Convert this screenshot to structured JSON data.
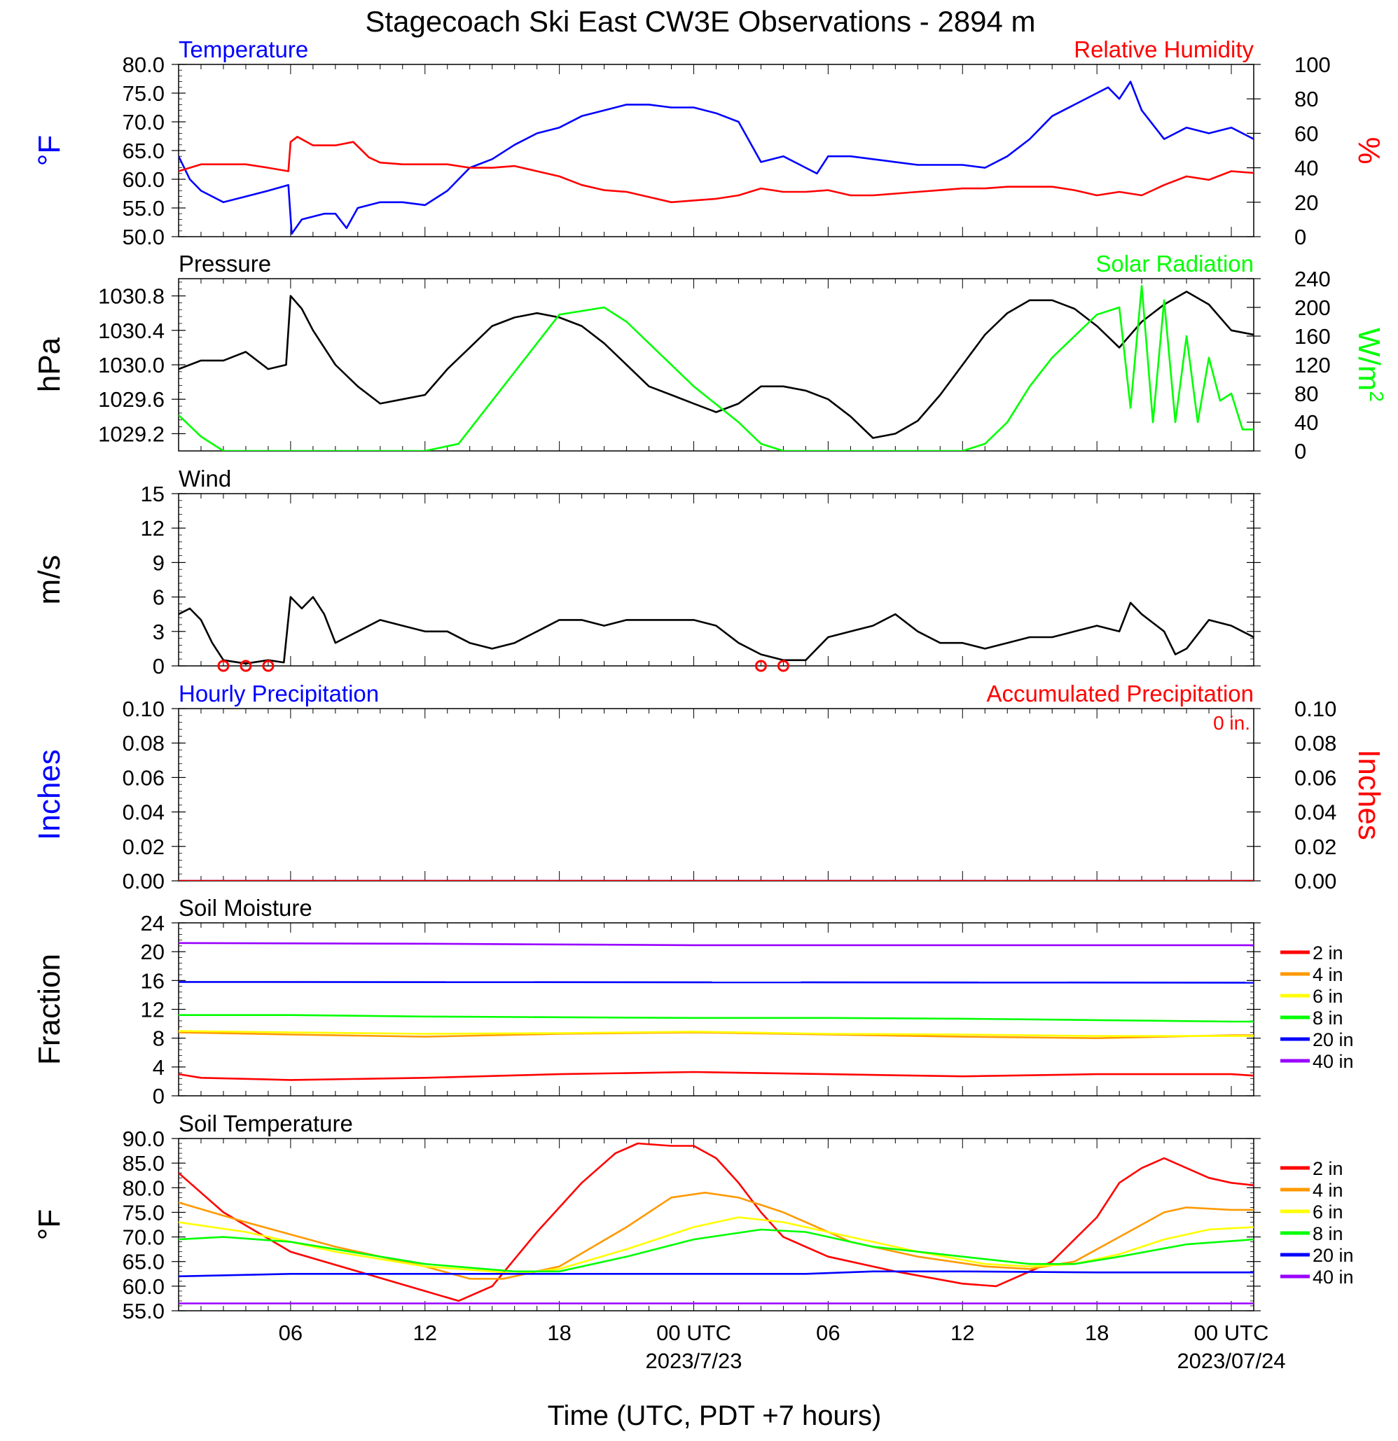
{
  "title": "Stagecoach Ski East CW3E Observations - 2894 m",
  "xlabel": "Time (UTC, PDT +7 hours)",
  "x_ticks": [
    "06",
    "12",
    "18",
    "00 UTC",
    "06",
    "12",
    "18",
    "00 UTC"
  ],
  "x_tick_hours": [
    6,
    12,
    18,
    24,
    30,
    36,
    42,
    48
  ],
  "date_labels": [
    {
      "hour": 24,
      "text": "2023/7/23"
    },
    {
      "hour": 48,
      "text": "2023/07/24"
    }
  ],
  "colors": {
    "blue": "#0000ff",
    "red": "#ff0000",
    "green": "#00ff00",
    "orange": "#ff9900",
    "yellow": "#ffff00",
    "purple": "#9900ff",
    "black": "#000000"
  },
  "chart_data": [
    {
      "type": "line",
      "left_title": "Temperature",
      "right_title": "Relative Humidity",
      "ylabel_left": "°F",
      "ylabel_right": "%",
      "ylim_left": [
        50,
        80
      ],
      "ylim_right": [
        0,
        100
      ],
      "yticks_left": [
        "50.0",
        "55.0",
        "60.0",
        "65.0",
        "70.0",
        "75.0",
        "80.0"
      ],
      "yticks_right": [
        "0",
        "20",
        "40",
        "60",
        "80",
        "100"
      ],
      "x_hours_range": [
        1,
        49
      ],
      "series": [
        {
          "axis": "left",
          "color": "#0000ff",
          "x": [
            1,
            1.5,
            2,
            3,
            4,
            5,
            5.9,
            6.05,
            6.5,
            7.5,
            8,
            8.5,
            9,
            10,
            11,
            12,
            13,
            14,
            15,
            16,
            17,
            18,
            19,
            20,
            21,
            22,
            23,
            24,
            25,
            26,
            27,
            28,
            29,
            29.5,
            30,
            31,
            32,
            33,
            34,
            35,
            36,
            37,
            38,
            39,
            40,
            41,
            42,
            42.5,
            43,
            43.5,
            44,
            45,
            46,
            47,
            48,
            49
          ],
          "y": [
            64,
            60,
            58,
            56,
            57,
            58,
            59,
            50.5,
            53,
            54,
            54,
            51.5,
            55,
            56,
            56,
            55.5,
            58,
            62,
            63.5,
            66,
            68,
            69,
            71,
            72,
            73,
            73,
            72.5,
            72.5,
            71.5,
            70,
            63,
            64,
            62,
            61,
            64,
            64,
            63.5,
            63,
            62.5,
            62.5,
            62.5,
            62,
            64,
            67,
            71,
            73,
            75,
            76,
            74,
            77,
            72,
            67,
            69,
            68,
            69,
            67
          ]
        },
        {
          "axis": "right",
          "color": "#ff0000",
          "x": [
            1,
            2,
            3,
            4,
            5,
            5.9,
            6,
            6.3,
            7,
            8,
            8.8,
            9.5,
            10,
            11,
            12,
            13,
            14,
            15,
            16,
            17,
            18,
            19,
            20,
            21,
            22,
            23,
            24,
            25,
            26,
            27,
            28,
            29,
            30,
            31,
            32,
            33,
            34,
            35,
            36,
            37,
            38,
            39,
            40,
            41,
            42,
            43,
            44,
            45,
            46,
            47,
            48,
            49
          ],
          "y": [
            38,
            42,
            42,
            42,
            40,
            38,
            55,
            58,
            53,
            53,
            55,
            46,
            43,
            42,
            42,
            42,
            40,
            40,
            41,
            38,
            35,
            30,
            27,
            26,
            23,
            20,
            21,
            22,
            24,
            28,
            26,
            26,
            27,
            24,
            24,
            25,
            26,
            27,
            28,
            28,
            29,
            29,
            29,
            27,
            24,
            26,
            24,
            30,
            35,
            33,
            38,
            37
          ]
        }
      ]
    },
    {
      "type": "line",
      "left_title": "Pressure",
      "right_title": "Solar Radiation",
      "ylabel_left": "hPa",
      "ylabel_right": "W/m",
      "ylabel_right_superscript": "2",
      "ylim_left": [
        1029.0,
        1031.0
      ],
      "ylim_right": [
        0,
        240
      ],
      "yticks_left": [
        "1029.2",
        "1029.6",
        "1030.0",
        "1030.4",
        "1030.8"
      ],
      "yticks_right": [
        "0",
        "40",
        "80",
        "120",
        "160",
        "200",
        "240"
      ],
      "series": [
        {
          "axis": "left",
          "color": "#000000",
          "x": [
            1,
            2,
            3,
            4,
            5,
            5.8,
            6,
            6.5,
            7,
            8,
            9,
            10,
            11,
            12,
            13,
            14,
            15,
            16,
            17,
            18,
            19,
            20,
            21,
            22,
            23,
            24,
            25,
            26,
            27,
            28,
            29,
            30,
            31,
            32,
            33,
            34,
            35,
            36,
            37,
            38,
            39,
            40,
            41,
            42,
            43,
            44,
            45,
            46,
            47,
            48,
            49
          ],
          "y": [
            1029.95,
            1030.05,
            1030.05,
            1030.15,
            1029.95,
            1030.0,
            1030.8,
            1030.65,
            1030.4,
            1030.0,
            1029.75,
            1029.55,
            1029.6,
            1029.65,
            1029.95,
            1030.2,
            1030.45,
            1030.55,
            1030.6,
            1030.55,
            1030.45,
            1030.25,
            1030.0,
            1029.75,
            1029.65,
            1029.55,
            1029.45,
            1029.55,
            1029.75,
            1029.75,
            1029.7,
            1029.6,
            1029.4,
            1029.15,
            1029.2,
            1029.35,
            1029.65,
            1030.0,
            1030.35,
            1030.6,
            1030.75,
            1030.75,
            1030.65,
            1030.45,
            1030.2,
            1030.5,
            1030.7,
            1030.85,
            1030.7,
            1030.4,
            1030.35
          ]
        },
        {
          "axis": "right",
          "color": "#00ff00",
          "x": [
            1,
            2,
            3,
            12,
            13.5,
            14,
            16,
            18,
            20,
            21,
            22,
            24,
            26,
            27,
            28,
            36,
            37,
            38,
            39,
            40,
            41,
            42,
            43,
            43.5,
            44,
            44.5,
            45,
            45.5,
            46,
            46.5,
            47,
            47.5,
            48,
            48.5,
            49
          ],
          "y": [
            50,
            20,
            0,
            0,
            10,
            30,
            110,
            190,
            200,
            180,
            150,
            90,
            40,
            10,
            0,
            0,
            10,
            40,
            90,
            130,
            160,
            190,
            200,
            60,
            230,
            40,
            210,
            40,
            160,
            40,
            130,
            70,
            80,
            30,
            30
          ]
        }
      ]
    },
    {
      "type": "line",
      "left_title": "Wind",
      "ylabel_left": "m/s",
      "ylim_left": [
        0,
        15
      ],
      "yticks_left": [
        "0",
        "3",
        "6",
        "9",
        "12",
        "15"
      ],
      "calm_markers_hours": [
        3,
        4,
        5,
        27,
        28
      ],
      "series": [
        {
          "axis": "left",
          "color": "#000000",
          "x": [
            1,
            1.5,
            2,
            2.5,
            3,
            4,
            5,
            5.7,
            6,
            6.5,
            7,
            7.5,
            8,
            8.5,
            9,
            10,
            11,
            12,
            13,
            14,
            15,
            16,
            17,
            18,
            19,
            20,
            21,
            22,
            23,
            24,
            25,
            26,
            27,
            28,
            29,
            30,
            31,
            32,
            33,
            34,
            35,
            36,
            37,
            38,
            39,
            40,
            41,
            42,
            43,
            43.5,
            44,
            45,
            45.5,
            46,
            47,
            48,
            49
          ],
          "y": [
            4.5,
            5,
            4,
            2,
            0.5,
            0.2,
            0.5,
            0.3,
            6,
            5,
            6,
            4.5,
            2,
            2.5,
            3,
            4,
            3.5,
            3,
            3,
            2,
            1.5,
            2,
            3,
            4,
            4,
            3.5,
            4,
            4,
            4,
            4,
            3.5,
            2,
            1,
            0.5,
            0.5,
            2.5,
            3,
            3.5,
            4.5,
            3,
            2,
            2,
            1.5,
            2,
            2.5,
            2.5,
            3,
            3.5,
            3,
            5.5,
            4.5,
            3,
            1,
            1.5,
            4,
            3.5,
            2.5
          ]
        }
      ]
    },
    {
      "type": "line",
      "left_title": "Hourly Precipitation",
      "right_title": "Accumulated Precipitation",
      "accum_note": "0 in.",
      "ylabel_left": "Inches",
      "ylabel_right": "Inches",
      "ylim_left": [
        0,
        0.1
      ],
      "ylim_right": [
        0,
        0.1
      ],
      "yticks_left": [
        "0.00",
        "0.02",
        "0.04",
        "0.06",
        "0.08",
        "0.10"
      ],
      "yticks_right": [
        "0.00",
        "0.02",
        "0.04",
        "0.06",
        "0.08",
        "0.10"
      ],
      "series": [
        {
          "axis": "left",
          "color": "#0000ff",
          "x": [
            1,
            49
          ],
          "y": [
            0,
            0
          ]
        },
        {
          "axis": "right",
          "color": "#ff0000",
          "x": [
            1,
            49
          ],
          "y": [
            0,
            0
          ]
        }
      ]
    },
    {
      "type": "line",
      "left_title": "Soil Moisture",
      "ylabel_left": "Fraction",
      "ylim_left": [
        0,
        24
      ],
      "yticks_left": [
        "0",
        "4",
        "8",
        "12",
        "16",
        "20",
        "24"
      ],
      "legend": [
        "2 in",
        "4 in",
        "6 in",
        "8 in",
        "20 in",
        "40 in"
      ],
      "series": [
        {
          "name": "2 in",
          "axis": "left",
          "color": "#ff0000",
          "x": [
            1,
            2,
            6,
            12,
            18,
            24,
            30,
            36,
            42,
            48,
            49
          ],
          "y": [
            3,
            2.5,
            2.2,
            2.5,
            3,
            3.3,
            3,
            2.7,
            3,
            3,
            2.8
          ]
        },
        {
          "name": "4 in",
          "axis": "left",
          "color": "#ff9900",
          "x": [
            1,
            6,
            12,
            18,
            24,
            30,
            36,
            42,
            48,
            49
          ],
          "y": [
            8.8,
            8.5,
            8.2,
            8.6,
            8.8,
            8.5,
            8.2,
            8.0,
            8.4,
            8.4
          ]
        },
        {
          "name": "6 in",
          "axis": "left",
          "color": "#ffff00",
          "x": [
            1,
            6,
            12,
            18,
            24,
            30,
            36,
            42,
            48,
            49
          ],
          "y": [
            9.0,
            8.8,
            8.6,
            8.7,
            8.9,
            8.6,
            8.5,
            8.3,
            8.3,
            8.3
          ]
        },
        {
          "name": "8 in",
          "axis": "left",
          "color": "#00ff00",
          "x": [
            1,
            6,
            12,
            18,
            24,
            30,
            36,
            42,
            48,
            49
          ],
          "y": [
            11.2,
            11.2,
            11,
            10.9,
            10.8,
            10.8,
            10.7,
            10.5,
            10.3,
            10.3
          ]
        },
        {
          "name": "20 in",
          "axis": "left",
          "color": "#0000ff",
          "x": [
            1,
            49
          ],
          "y": [
            15.8,
            15.7
          ]
        },
        {
          "name": "40 in",
          "axis": "left",
          "color": "#9900ff",
          "x": [
            1,
            12,
            24,
            49
          ],
          "y": [
            21.2,
            21.1,
            20.9,
            20.9
          ]
        }
      ]
    },
    {
      "type": "line",
      "left_title": "Soil Temperature",
      "ylabel_left": "°F",
      "ylim_left": [
        55,
        90
      ],
      "yticks_left": [
        "55.0",
        "60.0",
        "65.0",
        "70.0",
        "75.0",
        "80.0",
        "85.0",
        "90.0"
      ],
      "legend": [
        "2 in",
        "4 in",
        "6 in",
        "8 in",
        "20 in",
        "40 in"
      ],
      "series": [
        {
          "name": "2 in",
          "axis": "left",
          "color": "#ff0000",
          "x": [
            1,
            3,
            6,
            9,
            12,
            13.5,
            15,
            17,
            19,
            20.5,
            21.5,
            23,
            24,
            25,
            26,
            27,
            28,
            30,
            33,
            36,
            37.5,
            40,
            42,
            43,
            44,
            45,
            46,
            47,
            48,
            49
          ],
          "y": [
            83,
            75,
            67,
            63,
            59,
            57,
            60,
            71,
            81,
            87,
            89,
            88.5,
            88.5,
            86,
            81,
            75,
            70,
            66,
            63,
            60.5,
            60,
            65,
            74,
            81,
            84,
            86,
            84,
            82,
            81,
            80.5
          ]
        },
        {
          "name": "4 in",
          "axis": "left",
          "color": "#ff9900",
          "x": [
            1,
            4,
            8,
            12,
            14,
            15.5,
            18,
            21,
            23,
            24.5,
            26,
            28,
            31,
            34,
            37,
            39,
            41,
            43,
            45,
            46,
            48,
            49
          ],
          "y": [
            77,
            73,
            68,
            64,
            61.5,
            61.5,
            64,
            72,
            78,
            79,
            78,
            75,
            69,
            66,
            64,
            63.5,
            65,
            70,
            75,
            76,
            75.5,
            75.5
          ]
        },
        {
          "name": "6 in",
          "axis": "left",
          "color": "#ffff00",
          "x": [
            1,
            4,
            8,
            12,
            15,
            16,
            18,
            21,
            24,
            26,
            28,
            31,
            34,
            37,
            39,
            41,
            43,
            45,
            47,
            49
          ],
          "y": [
            73,
            71,
            67,
            64,
            63,
            62.5,
            63.5,
            67.5,
            72,
            74,
            73,
            70,
            67,
            64.5,
            64,
            64.5,
            66.5,
            69.5,
            71.5,
            72
          ]
        },
        {
          "name": "8 in",
          "axis": "left",
          "color": "#00ff00",
          "x": [
            1,
            3,
            6,
            12,
            16,
            18,
            21,
            24,
            27,
            29,
            32,
            36,
            39,
            41,
            43,
            46,
            49
          ],
          "y": [
            69.5,
            70,
            69,
            64.5,
            63,
            63,
            66,
            69.5,
            71.5,
            71,
            68,
            66,
            64.5,
            64.5,
            66,
            68.5,
            69.5
          ]
        },
        {
          "name": "20 in",
          "axis": "left",
          "color": "#0000ff",
          "x": [
            1,
            6,
            12,
            18,
            24,
            29,
            32,
            36,
            42,
            49
          ],
          "y": [
            62,
            62.5,
            62.5,
            62.5,
            62.5,
            62.5,
            63,
            63,
            62.8,
            62.8
          ]
        },
        {
          "name": "40 in",
          "axis": "left",
          "color": "#9900ff",
          "x": [
            1,
            49
          ],
          "y": [
            56.5,
            56.5
          ]
        }
      ]
    }
  ]
}
